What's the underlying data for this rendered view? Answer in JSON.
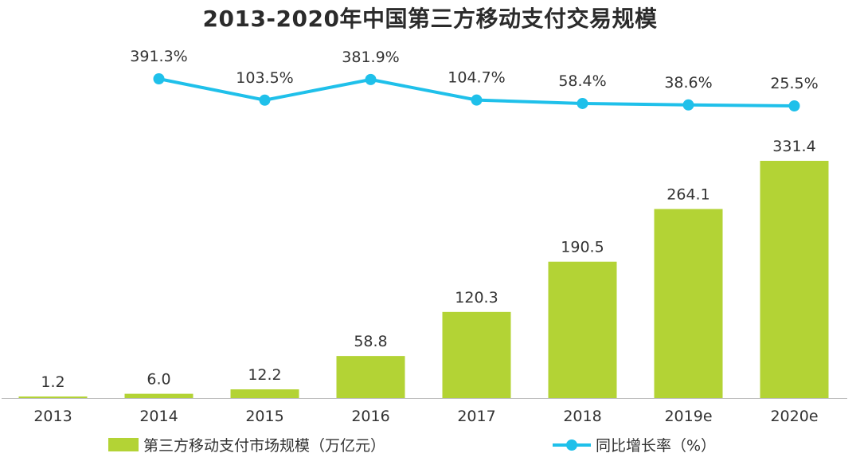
{
  "chart_data": {
    "type": "bar+line",
    "title": "2013-2020年中国第三方移动支付交易规模",
    "categories": [
      "2013",
      "2014",
      "2015",
      "2016",
      "2017",
      "2018",
      "2019e",
      "2020e"
    ],
    "series": [
      {
        "name": "第三方移动支付市场规模（万亿元）",
        "type": "bar",
        "values": [
          1.2,
          6.0,
          12.2,
          58.8,
          120.3,
          190.5,
          264.1,
          331.4
        ],
        "labels": [
          "1.2",
          "6.0",
          "12.2",
          "58.8",
          "120.3",
          "190.5",
          "264.1",
          "331.4"
        ],
        "color": "#B3D335"
      },
      {
        "name": "同比增长率（%）",
        "type": "line",
        "values": [
          null,
          391.3,
          103.5,
          381.9,
          104.7,
          58.4,
          38.6,
          25.5
        ],
        "labels": [
          "",
          "391.3%",
          "103.5%",
          "381.9%",
          "104.7%",
          "58.4%",
          "38.6%",
          "25.5%"
        ],
        "color": "#1FC0EA"
      }
    ],
    "ylim": [
      0,
      331.4
    ],
    "legend_position": "bottom",
    "grid": false
  }
}
